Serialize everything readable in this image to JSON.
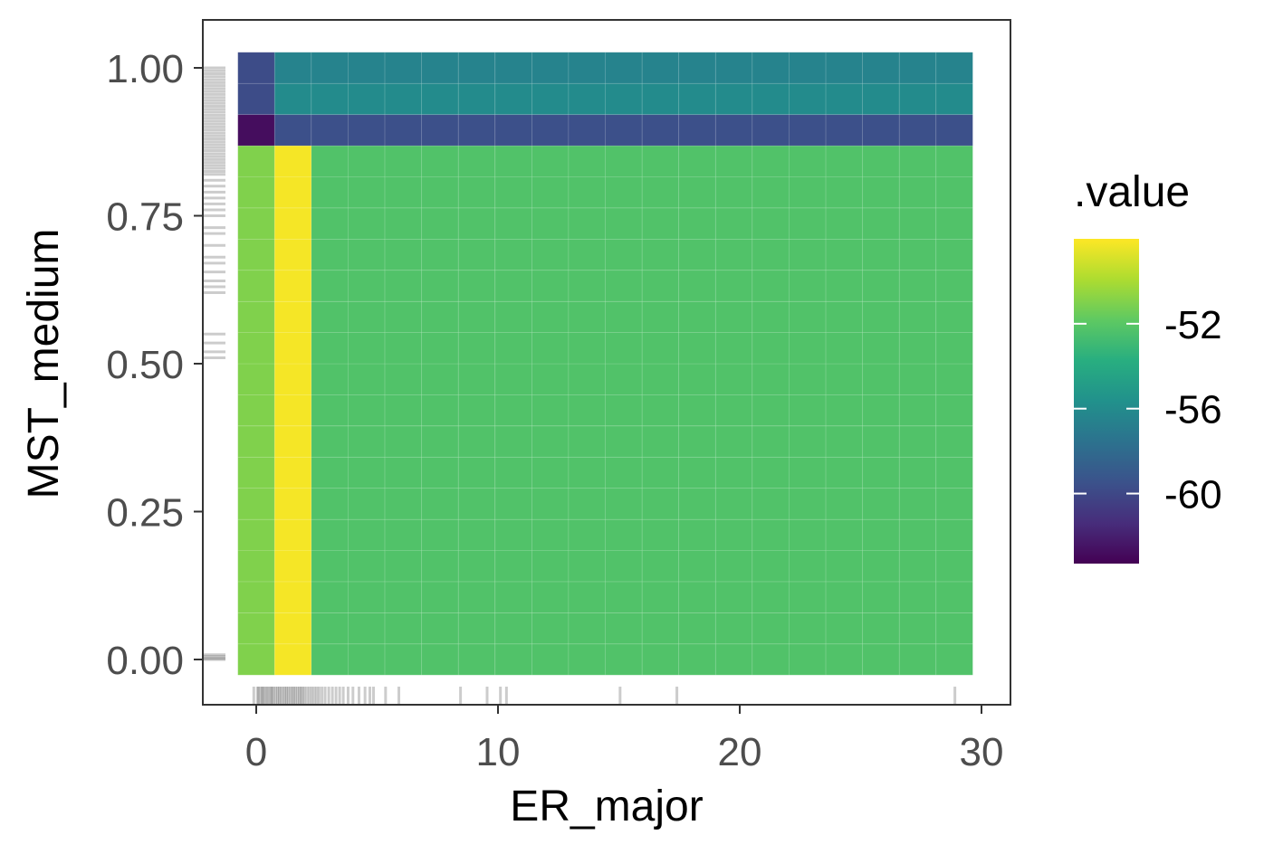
{
  "chart_data": {
    "type": "heatmap",
    "xlabel": "ER_major",
    "ylabel": "MST_medium",
    "xlim": [
      -2.2,
      31.5
    ],
    "ylim": [
      -0.075,
      1.075
    ],
    "x_ticks": [
      0,
      10,
      20,
      30
    ],
    "x_tick_labels": [
      "0",
      "10",
      "20",
      "30"
    ],
    "y_ticks": [
      0,
      0.25,
      0.5,
      0.75,
      1.0
    ],
    "y_tick_labels": [
      "0.00",
      "0.25",
      "0.50",
      "0.75",
      "1.00"
    ],
    "grid": false,
    "x_grid": [
      0.0,
      1.52,
      3.04,
      4.56,
      6.08,
      7.6,
      9.12,
      10.64,
      12.16,
      13.68,
      15.2,
      16.72,
      18.24,
      19.76,
      21.28,
      22.8,
      24.32,
      25.84,
      27.36,
      28.88
    ],
    "y_grid": [
      0.0,
      0.0526,
      0.1053,
      0.1579,
      0.2105,
      0.2632,
      0.3158,
      0.3684,
      0.4211,
      0.4737,
      0.5263,
      0.5789,
      0.6316,
      0.6842,
      0.7368,
      0.7895,
      0.8421,
      0.8947,
      0.9474,
      1.0
    ],
    "value_regions": [
      {
        "x_from": 0.0,
        "x_to": 0.0,
        "y_from": 0.0,
        "y_to": 0.8421,
        "value": -51.0
      },
      {
        "x_from": 1.52,
        "x_to": 1.52,
        "y_from": 0.0,
        "y_to": 0.8421,
        "value": -48.2
      },
      {
        "x_from": 3.04,
        "x_to": 28.88,
        "y_from": 0.0,
        "y_to": 0.8421,
        "value": -52.3
      },
      {
        "x_from": 0.0,
        "x_to": 0.0,
        "y_from": 0.8947,
        "y_to": 0.8947,
        "value": -62.8
      },
      {
        "x_from": 1.52,
        "x_to": 28.88,
        "y_from": 0.8947,
        "y_to": 0.8947,
        "value": -59.6
      },
      {
        "x_from": 0.0,
        "x_to": 0.0,
        "y_from": 0.9474,
        "y_to": 1.0,
        "value": -59.8
      },
      {
        "x_from": 1.52,
        "x_to": 28.88,
        "y_from": 0.9474,
        "y_to": 0.9474,
        "value": -56.0
      },
      {
        "x_from": 1.52,
        "x_to": 28.88,
        "y_from": 1.0,
        "y_to": 1.0,
        "value": -56.5
      }
    ],
    "x_rug": [
      -0.1,
      0.05,
      0.1,
      0.18,
      0.25,
      0.3,
      0.38,
      0.45,
      0.52,
      0.6,
      0.65,
      0.72,
      0.8,
      0.88,
      0.95,
      1.02,
      1.1,
      1.18,
      1.25,
      1.32,
      1.4,
      1.48,
      1.55,
      1.62,
      1.7,
      1.78,
      1.85,
      1.92,
      2.0,
      2.1,
      2.2,
      2.3,
      2.4,
      2.5,
      2.6,
      2.72,
      2.85,
      3.0,
      3.15,
      3.3,
      3.45,
      3.6,
      3.8,
      4.0,
      4.25,
      4.5,
      4.7,
      4.85,
      5.35,
      5.9,
      8.45,
      9.55,
      10.1,
      10.35,
      15.05,
      17.4,
      28.9
    ],
    "y_rug": [
      0.0,
      0.002,
      0.005,
      0.008,
      0.51,
      0.52,
      0.535,
      0.55,
      0.62,
      0.63,
      0.64,
      0.655,
      0.67,
      0.68,
      0.7,
      0.72,
      0.73,
      0.75,
      0.76,
      0.77,
      0.78,
      0.79,
      0.8,
      0.81,
      0.82,
      0.825,
      0.83,
      0.835,
      0.84,
      0.845,
      0.85,
      0.855,
      0.86,
      0.865,
      0.87,
      0.875,
      0.88,
      0.885,
      0.89,
      0.895,
      0.9,
      0.905,
      0.91,
      0.915,
      0.92,
      0.925,
      0.93,
      0.935,
      0.94,
      0.945,
      0.95,
      0.955,
      0.96,
      0.965,
      0.97,
      0.975,
      0.98,
      0.985,
      0.99,
      0.995,
      1.0
    ],
    "legend": {
      "title": ".value",
      "position": "right",
      "min": -63.3,
      "max": -48.0,
      "breaks": [
        -52,
        -56,
        -60
      ],
      "break_labels": [
        "-52",
        "-56",
        "-60"
      ],
      "colormap": "viridis"
    }
  }
}
